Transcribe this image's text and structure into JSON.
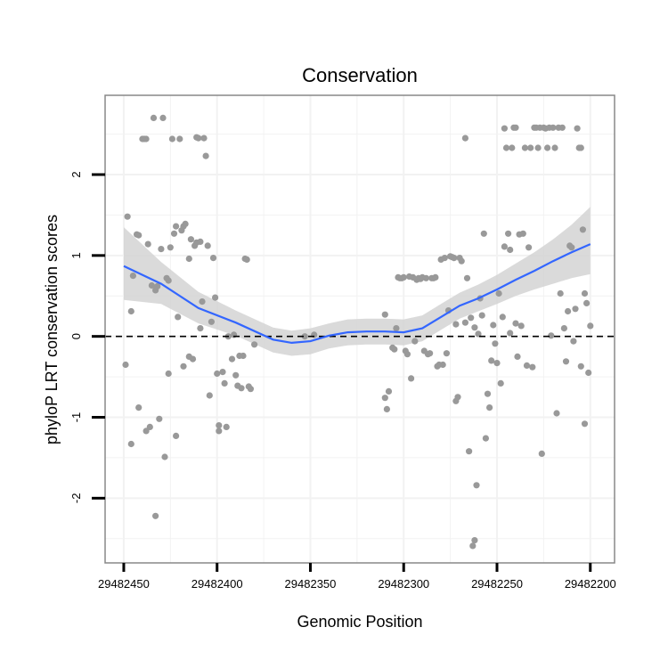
{
  "chart_data": {
    "type": "scatter",
    "title": "Conservation",
    "xlabel": "Genomic Position",
    "ylabel": "phyloP LRT conservation scores",
    "x_reversed": true,
    "xlim": [
      29482200,
      29482450
    ],
    "xlim_display": [
      29482187,
      29482460
    ],
    "ylim": [
      -2.8,
      2.98
    ],
    "x_ticks": [
      29482450,
      29482400,
      29482350,
      29482300,
      29482250,
      29482200
    ],
    "x_tick_labels": [
      "29482450",
      "29482400",
      "29482350",
      "29482300",
      "29482250",
      "29482200"
    ],
    "y_ticks": [
      -2,
      -1,
      0,
      1,
      2
    ],
    "y_tick_labels": [
      "-2",
      "-1",
      "0",
      "1",
      "2"
    ],
    "reference_line": {
      "y": 0,
      "style": "dashed"
    },
    "colors": {
      "points": "#999999",
      "smooth": "#3366ff",
      "ribbon": "#d3d3d3",
      "grid": "#f2f2f2",
      "panel_border": "#888888"
    },
    "points": [
      [
        29482448,
        1.48
      ],
      [
        29482449,
        -0.35
      ],
      [
        29482446,
        -1.33
      ],
      [
        29482446,
        0.31
      ],
      [
        29482445,
        0.75
      ],
      [
        29482443,
        1.26
      ],
      [
        29482442,
        1.25
      ],
      [
        29482442,
        -0.88
      ],
      [
        29482440,
        2.44
      ],
      [
        29482439,
        2.44
      ],
      [
        29482438,
        2.44
      ],
      [
        29482438,
        -1.17
      ],
      [
        29482437,
        1.14
      ],
      [
        29482436,
        -1.12
      ],
      [
        29482435,
        0.63
      ],
      [
        29482434,
        2.7
      ],
      [
        29482433,
        -2.22
      ],
      [
        29482433,
        0.57
      ],
      [
        29482432,
        0.62
      ],
      [
        29482431,
        -1.02
      ],
      [
        29482430,
        1.08
      ],
      [
        29482429,
        2.7
      ],
      [
        29482428,
        -1.49
      ],
      [
        29482427,
        0.72
      ],
      [
        29482426,
        0.69
      ],
      [
        29482426,
        -0.46
      ],
      [
        29482425,
        1.1
      ],
      [
        29482424,
        2.44
      ],
      [
        29482423,
        1.27
      ],
      [
        29482422,
        -1.23
      ],
      [
        29482422,
        1.36
      ],
      [
        29482421,
        0.24
      ],
      [
        29482420,
        2.44
      ],
      [
        29482419,
        1.31
      ],
      [
        29482418,
        -0.37
      ],
      [
        29482418,
        1.36
      ],
      [
        29482417,
        1.39
      ],
      [
        29482415,
        -0.25
      ],
      [
        29482415,
        0.96
      ],
      [
        29482414,
        1.2
      ],
      [
        29482413,
        -0.28
      ],
      [
        29482412,
        1.12
      ],
      [
        29482411,
        2.46
      ],
      [
        29482411,
        1.16
      ],
      [
        29482410,
        2.45
      ],
      [
        29482409,
        0.1
      ],
      [
        29482409,
        1.17
      ],
      [
        29482408,
        0.43
      ],
      [
        29482407,
        2.45
      ],
      [
        29482406,
        2.23
      ],
      [
        29482405,
        1.12
      ],
      [
        29482404,
        -0.73
      ],
      [
        29482403,
        0.18
      ],
      [
        29482402,
        0.97
      ],
      [
        29482401,
        0.48
      ],
      [
        29482400,
        -0.46
      ],
      [
        29482399,
        -1.1
      ],
      [
        29482399,
        -1.17
      ],
      [
        29482397,
        -0.44
      ],
      [
        29482396,
        -0.58
      ],
      [
        29482395,
        -1.12
      ],
      [
        29482394,
        0.0
      ],
      [
        29482392,
        -0.28
      ],
      [
        29482391,
        0.02
      ],
      [
        29482390,
        -0.48
      ],
      [
        29482389,
        -0.61
      ],
      [
        29482388,
        -0.24
      ],
      [
        29482387,
        -0.64
      ],
      [
        29482386,
        -0.24
      ],
      [
        29482385,
        0.96
      ],
      [
        29482384,
        0.95
      ],
      [
        29482383,
        -0.62
      ],
      [
        29482382,
        -0.65
      ],
      [
        29482380,
        -0.1
      ],
      [
        29482353,
        0.0
      ],
      [
        29482348,
        0.02
      ],
      [
        29482310,
        0.27
      ],
      [
        29482310,
        -0.76
      ],
      [
        29482309,
        -0.9
      ],
      [
        29482308,
        -0.68
      ],
      [
        29482306,
        -0.14
      ],
      [
        29482305,
        -0.16
      ],
      [
        29482304,
        0.1
      ],
      [
        29482303,
        0.73
      ],
      [
        29482302,
        0.72
      ],
      [
        29482301,
        0.72
      ],
      [
        29482300,
        0.73
      ],
      [
        29482299,
        -0.18
      ],
      [
        29482298,
        -0.22
      ],
      [
        29482297,
        0.74
      ],
      [
        29482296,
        -0.52
      ],
      [
        29482295,
        0.73
      ],
      [
        29482294,
        -0.06
      ],
      [
        29482293,
        0.7
      ],
      [
        29482292,
        0.72
      ],
      [
        29482291,
        0.71
      ],
      [
        29482290,
        0.73
      ],
      [
        29482289,
        -0.18
      ],
      [
        29482288,
        0.72
      ],
      [
        29482287,
        -0.22
      ],
      [
        29482286,
        -0.21
      ],
      [
        29482285,
        0.72
      ],
      [
        29482284,
        0.72
      ],
      [
        29482283,
        0.73
      ],
      [
        29482282,
        -0.37
      ],
      [
        29482281,
        -0.35
      ],
      [
        29482280,
        0.95
      ],
      [
        29482279,
        -0.35
      ],
      [
        29482278,
        0.97
      ],
      [
        29482277,
        -0.21
      ],
      [
        29482276,
        0.32
      ],
      [
        29482275,
        0.99
      ],
      [
        29482274,
        0.98
      ],
      [
        29482273,
        0.97
      ],
      [
        29482272,
        -0.8
      ],
      [
        29482272,
        0.15
      ],
      [
        29482271,
        -0.75
      ],
      [
        29482270,
        0.97
      ],
      [
        29482269,
        0.93
      ],
      [
        29482267,
        0.17
      ],
      [
        29482267,
        2.45
      ],
      [
        29482266,
        0.72
      ],
      [
        29482265,
        -1.42
      ],
      [
        29482264,
        0.23
      ],
      [
        29482263,
        -2.59
      ],
      [
        29482262,
        -2.52
      ],
      [
        29482262,
        0.11
      ],
      [
        29482261,
        -1.84
      ],
      [
        29482260,
        0.03
      ],
      [
        29482259,
        0.47
      ],
      [
        29482258,
        0.26
      ],
      [
        29482257,
        1.27
      ],
      [
        29482256,
        -1.26
      ],
      [
        29482255,
        -0.71
      ],
      [
        29482254,
        -0.88
      ],
      [
        29482253,
        -0.3
      ],
      [
        29482252,
        0.14
      ],
      [
        29482251,
        -0.09
      ],
      [
        29482250,
        -0.33
      ],
      [
        29482249,
        0.53
      ],
      [
        29482248,
        -0.58
      ],
      [
        29482247,
        0.24
      ],
      [
        29482246,
        2.57
      ],
      [
        29482246,
        1.11
      ],
      [
        29482245,
        2.33
      ],
      [
        29482244,
        1.27
      ],
      [
        29482243,
        0.04
      ],
      [
        29482243,
        1.07
      ],
      [
        29482242,
        2.33
      ],
      [
        29482241,
        2.58
      ],
      [
        29482240,
        2.58
      ],
      [
        29482240,
        0.16
      ],
      [
        29482239,
        -0.25
      ],
      [
        29482238,
        1.26
      ],
      [
        29482237,
        0.13
      ],
      [
        29482236,
        1.27
      ],
      [
        29482235,
        2.33
      ],
      [
        29482234,
        -0.36
      ],
      [
        29482233,
        1.1
      ],
      [
        29482232,
        2.33
      ],
      [
        29482231,
        -0.38
      ],
      [
        29482230,
        2.58
      ],
      [
        29482229,
        2.58
      ],
      [
        29482228,
        2.33
      ],
      [
        29482227,
        2.58
      ],
      [
        29482226,
        -1.45
      ],
      [
        29482225,
        2.58
      ],
      [
        29482224,
        2.57
      ],
      [
        29482223,
        2.33
      ],
      [
        29482222,
        2.58
      ],
      [
        29482221,
        0.01
      ],
      [
        29482220,
        2.58
      ],
      [
        29482219,
        2.33
      ],
      [
        29482218,
        -0.95
      ],
      [
        29482217,
        2.58
      ],
      [
        29482216,
        0.53
      ],
      [
        29482215,
        2.58
      ],
      [
        29482214,
        0.1
      ],
      [
        29482213,
        -0.31
      ],
      [
        29482212,
        0.31
      ],
      [
        29482211,
        1.12
      ],
      [
        29482210,
        1.1
      ],
      [
        29482209,
        -0.06
      ],
      [
        29482208,
        0.34
      ],
      [
        29482207,
        2.57
      ],
      [
        29482206,
        2.33
      ],
      [
        29482205,
        -0.37
      ],
      [
        29482205,
        2.33
      ],
      [
        29482204,
        1.32
      ],
      [
        29482203,
        -1.08
      ],
      [
        29482203,
        0.53
      ],
      [
        29482202,
        0.41
      ],
      [
        29482201,
        -0.45
      ],
      [
        29482200,
        0.13
      ]
    ],
    "smooth": {
      "x": [
        29482450,
        29482430,
        29482410,
        29482390,
        29482370,
        29482360,
        29482350,
        29482340,
        29482330,
        29482320,
        29482310,
        29482300,
        29482290,
        29482280,
        29482270,
        29482260,
        29482250,
        29482240,
        29482230,
        29482220,
        29482210,
        29482200
      ],
      "y": [
        0.87,
        0.65,
        0.35,
        0.17,
        -0.04,
        -0.08,
        -0.06,
        0.01,
        0.05,
        0.06,
        0.06,
        0.05,
        0.1,
        0.24,
        0.38,
        0.47,
        0.58,
        0.7,
        0.81,
        0.93,
        1.04,
        1.14
      ],
      "lower": [
        0.45,
        0.4,
        0.16,
        0.01,
        -0.2,
        -0.24,
        -0.22,
        -0.15,
        -0.11,
        -0.1,
        -0.1,
        -0.11,
        -0.06,
        0.08,
        0.22,
        0.31,
        0.4,
        0.5,
        0.58,
        0.65,
        0.72,
        0.77
      ],
      "upper": [
        1.35,
        0.92,
        0.55,
        0.32,
        0.11,
        0.07,
        0.1,
        0.16,
        0.21,
        0.22,
        0.22,
        0.21,
        0.26,
        0.4,
        0.54,
        0.64,
        0.76,
        0.9,
        1.04,
        1.2,
        1.38,
        1.6
      ]
    }
  }
}
